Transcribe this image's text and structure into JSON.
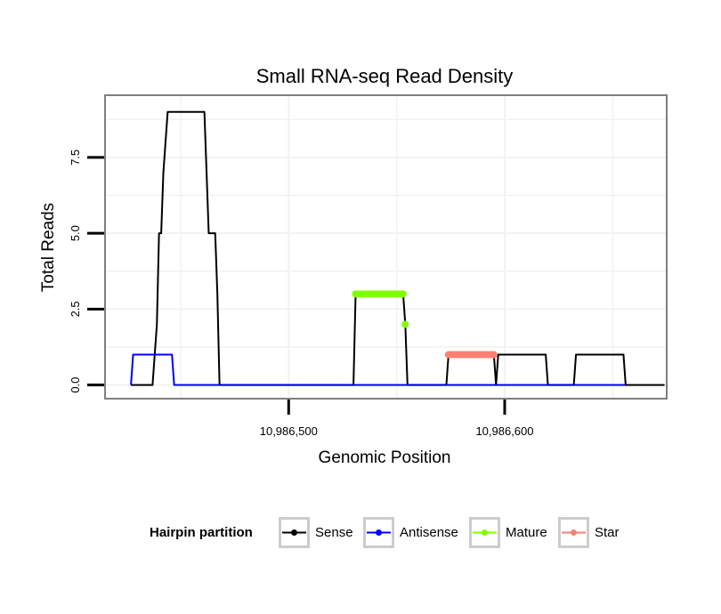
{
  "chart_data": {
    "type": "line",
    "title": "Small RNA-seq Read Density",
    "xlabel": "Genomic Position",
    "ylabel": "Total Reads",
    "xlim": [
      10986415,
      10986675
    ],
    "ylim": [
      -0.45,
      9.55
    ],
    "x_ticks": [
      {
        "value": 10986500,
        "label": "10,986,500"
      },
      {
        "value": 10986600,
        "label": "10,986,600"
      }
    ],
    "y_ticks": [
      {
        "value": 0,
        "label": "0.0"
      },
      {
        "value": 2.5,
        "label": "2.5"
      },
      {
        "value": 5,
        "label": "5.0"
      },
      {
        "value": 7.5,
        "label": "7.5"
      }
    ],
    "grid": true,
    "legend": {
      "title": "Hairpin partition",
      "position": "bottom",
      "entries": [
        {
          "name": "Sense",
          "color": "#000000"
        },
        {
          "name": "Antisense",
          "color": "#0000ff"
        },
        {
          "name": "Mature",
          "color": "#7fff00"
        },
        {
          "name": "Star",
          "color": "#fa8072"
        }
      ]
    },
    "series": [
      {
        "name": "Sense",
        "kind": "line",
        "color": "#000000",
        "points": [
          [
            10986427,
            0
          ],
          [
            10986437,
            0
          ],
          [
            10986439,
            2
          ],
          [
            10986440,
            5
          ],
          [
            10986441,
            5
          ],
          [
            10986442,
            7
          ],
          [
            10986443,
            8
          ],
          [
            10986444,
            9
          ],
          [
            10986461,
            9
          ],
          [
            10986462,
            7
          ],
          [
            10986463,
            5
          ],
          [
            10986466,
            5
          ],
          [
            10986467,
            3
          ],
          [
            10986468,
            0
          ],
          [
            10986530,
            0
          ],
          [
            10986531,
            3
          ],
          [
            10986553,
            3
          ],
          [
            10986554,
            2
          ],
          [
            10986555,
            0
          ],
          [
            10986573,
            0
          ],
          [
            10986574,
            1
          ],
          [
            10986595,
            1
          ],
          [
            10986596,
            0
          ],
          [
            10986597,
            1
          ],
          [
            10986619,
            1
          ],
          [
            10986620,
            0
          ],
          [
            10986632,
            0
          ],
          [
            10986633,
            1
          ],
          [
            10986655,
            1
          ],
          [
            10986656,
            0
          ],
          [
            10986674,
            0
          ]
        ]
      },
      {
        "name": "Antisense",
        "kind": "line",
        "color": "#0000ff",
        "points": [
          [
            10986427,
            0
          ],
          [
            10986428,
            1
          ],
          [
            10986446,
            1
          ],
          [
            10986447,
            0
          ],
          [
            10986656,
            0
          ]
        ]
      },
      {
        "name": "Mature",
        "kind": "points",
        "color": "#7fff00",
        "points": [
          [
            10986531,
            3
          ],
          [
            10986532,
            3
          ],
          [
            10986533,
            3
          ],
          [
            10986534,
            3
          ],
          [
            10986535,
            3
          ],
          [
            10986536,
            3
          ],
          [
            10986537,
            3
          ],
          [
            10986538,
            3
          ],
          [
            10986539,
            3
          ],
          [
            10986540,
            3
          ],
          [
            10986541,
            3
          ],
          [
            10986542,
            3
          ],
          [
            10986543,
            3
          ],
          [
            10986544,
            3
          ],
          [
            10986545,
            3
          ],
          [
            10986546,
            3
          ],
          [
            10986547,
            3
          ],
          [
            10986548,
            3
          ],
          [
            10986549,
            3
          ],
          [
            10986550,
            3
          ],
          [
            10986551,
            3
          ],
          [
            10986552,
            3
          ],
          [
            10986553,
            3
          ],
          [
            10986554,
            2
          ]
        ]
      },
      {
        "name": "Star",
        "kind": "points",
        "color": "#fa8072",
        "points": [
          [
            10986574,
            1
          ],
          [
            10986575,
            1
          ],
          [
            10986576,
            1
          ],
          [
            10986577,
            1
          ],
          [
            10986578,
            1
          ],
          [
            10986579,
            1
          ],
          [
            10986580,
            1
          ],
          [
            10986581,
            1
          ],
          [
            10986582,
            1
          ],
          [
            10986583,
            1
          ],
          [
            10986584,
            1
          ],
          [
            10986585,
            1
          ],
          [
            10986586,
            1
          ],
          [
            10986587,
            1
          ],
          [
            10986588,
            1
          ],
          [
            10986589,
            1
          ],
          [
            10986590,
            1
          ],
          [
            10986591,
            1
          ],
          [
            10986592,
            1
          ],
          [
            10986593,
            1
          ],
          [
            10986594,
            1
          ],
          [
            10986595,
            1
          ]
        ]
      }
    ]
  }
}
